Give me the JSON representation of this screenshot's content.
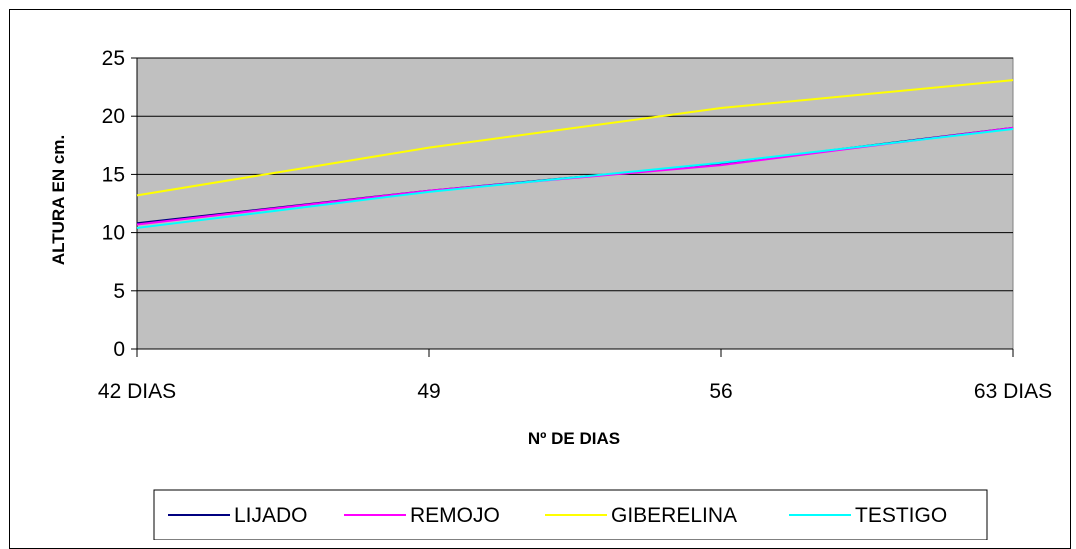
{
  "chart_data": {
    "type": "line",
    "title": "",
    "xlabel": "Nº DE DIAS",
    "ylabel": "ALTURA EN cm.",
    "categories": [
      "42 DIAS",
      "49",
      "56",
      "63 DIAS"
    ],
    "ylim": [
      0,
      25
    ],
    "yticks": [
      0,
      5,
      10,
      15,
      20,
      25
    ],
    "grid": true,
    "plot_background": "#c0c0c0",
    "legend_position": "bottom",
    "series": [
      {
        "name": "LIJADO",
        "color": "#000080",
        "values": [
          10.8,
          13.6,
          15.9,
          19.0
        ]
      },
      {
        "name": "REMOJO",
        "color": "#ff00ff",
        "values": [
          10.7,
          13.6,
          15.8,
          19.0
        ]
      },
      {
        "name": "GIBERELINA",
        "color": "#ffff00",
        "values": [
          13.2,
          17.3,
          20.7,
          23.1
        ]
      },
      {
        "name": "TESTIGO",
        "color": "#00ffff",
        "values": [
          10.4,
          13.5,
          16.0,
          18.9
        ]
      }
    ]
  }
}
